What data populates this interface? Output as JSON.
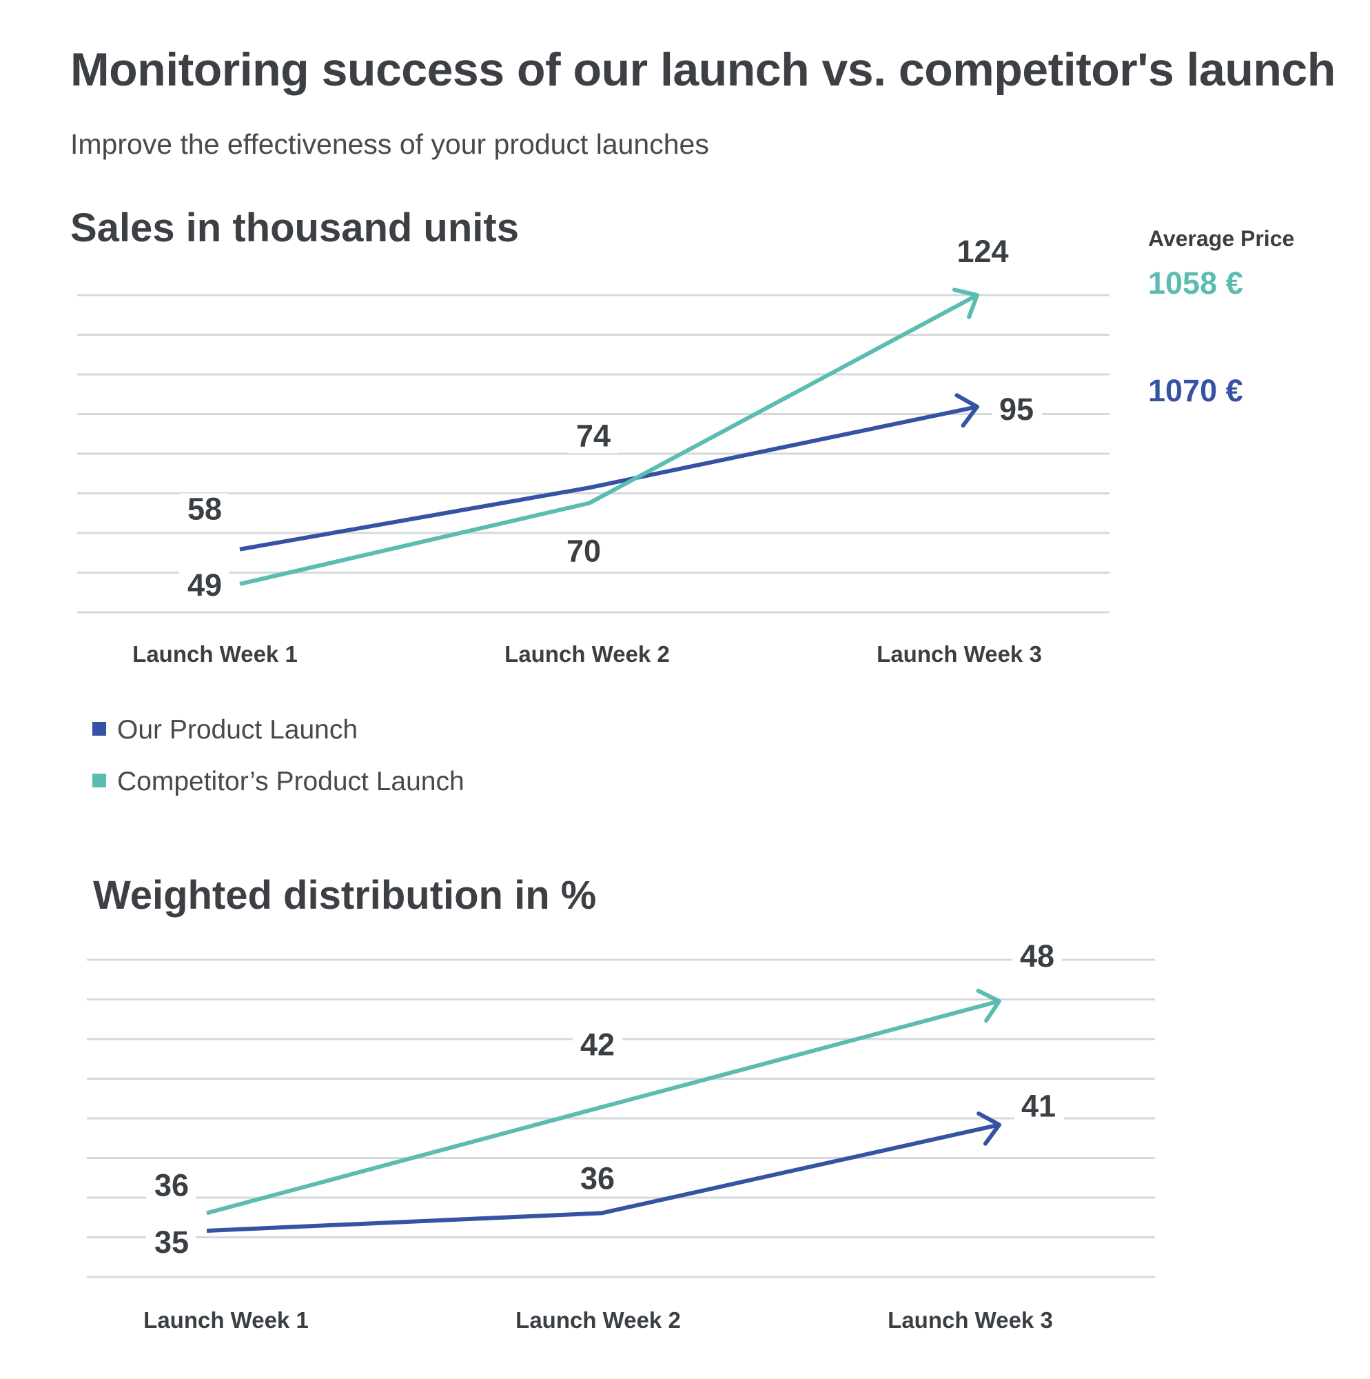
{
  "header": {
    "title": "Monitoring success of our launch vs. competitor's launch",
    "subtitle": "Improve the effectiveness of your product launches"
  },
  "colors": {
    "ours": "#3553a3",
    "competitor": "#5bbcb1"
  },
  "price_panel": {
    "heading": "Average Price",
    "competitor_price": "1058 €",
    "ours_price": "1070 €"
  },
  "legend": {
    "ours": "Our Product Launch",
    "competitor": "Competitor’s Product Launch"
  },
  "chart_data": [
    {
      "type": "line",
      "title": "Sales in thousand units",
      "categories": [
        "Launch Week 1",
        "Launch Week 2",
        "Launch Week 3"
      ],
      "series": [
        {
          "name": "Our Product Launch",
          "values": [
            58,
            74,
            95
          ]
        },
        {
          "name": "Competitor’s Product Launch",
          "values": [
            49,
            70,
            124
          ]
        }
      ],
      "grid": true,
      "legend": "bottom-left"
    },
    {
      "type": "line",
      "title": "Weighted distribution in %",
      "categories": [
        "Launch Week 1",
        "Launch Week 2",
        "Launch Week 3"
      ],
      "series": [
        {
          "name": "Our Product Launch",
          "values": [
            35,
            36,
            41
          ]
        },
        {
          "name": "Competitor’s Product Launch",
          "values": [
            36,
            42,
            48
          ]
        }
      ],
      "grid": true
    }
  ]
}
